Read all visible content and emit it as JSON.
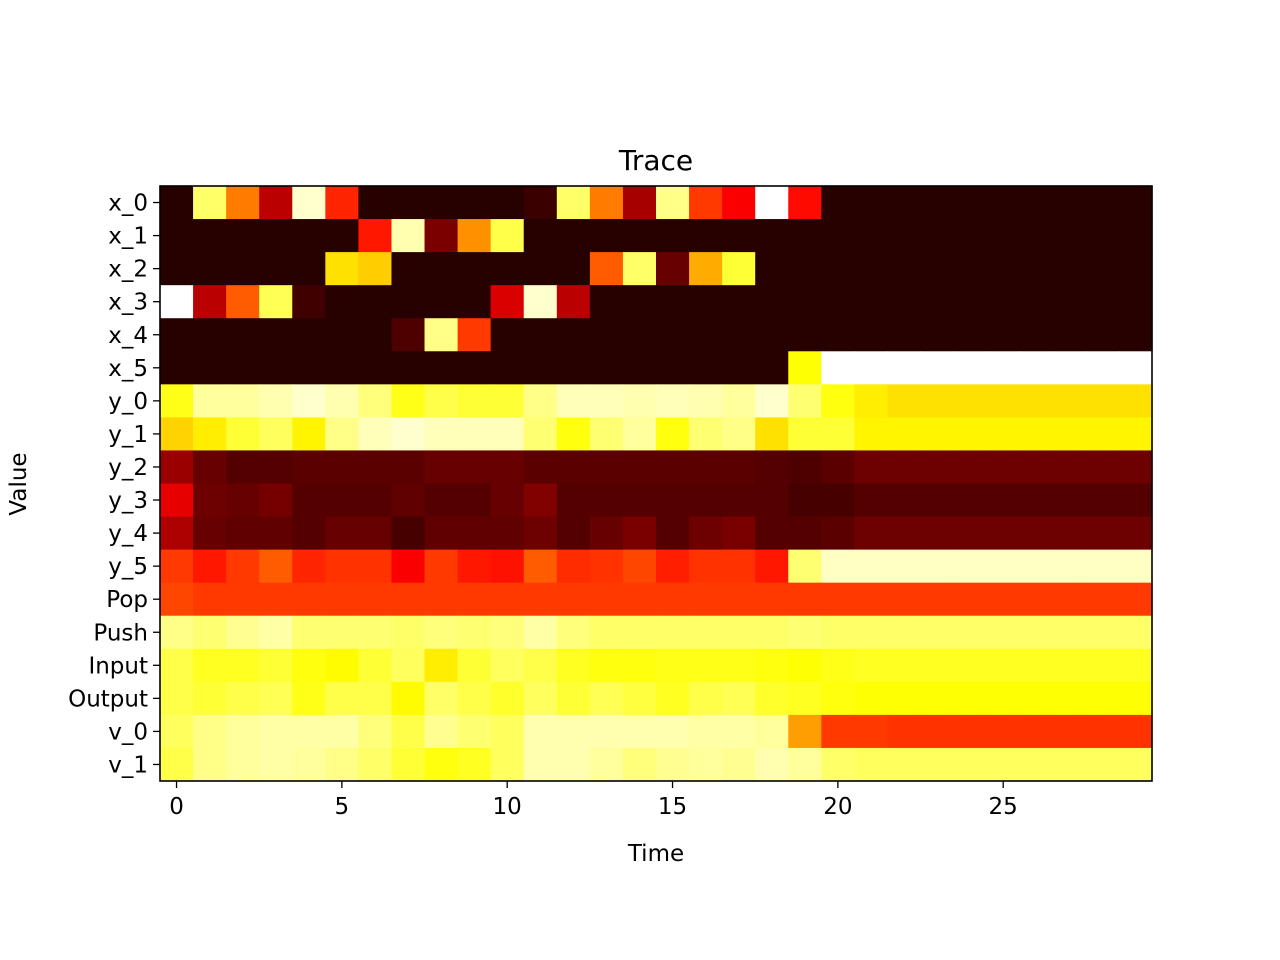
{
  "chart_data": {
    "type": "heatmap",
    "title": "Trace",
    "xlabel": "Time",
    "ylabel": "Value",
    "colormap": "hot",
    "vrange": [
      0,
      1
    ],
    "x_range": [
      -0.5,
      29.5
    ],
    "x_ticks": [
      0,
      5,
      10,
      15,
      20,
      25
    ],
    "x_tick_labels": [
      "0",
      "5",
      "10",
      "15",
      "20",
      "25"
    ],
    "rows": [
      "x_0",
      "x_1",
      "x_2",
      "x_3",
      "x_4",
      "x_5",
      "y_0",
      "y_1",
      "y_2",
      "y_3",
      "y_4",
      "y_5",
      "Pop",
      "Push",
      "Input",
      "Output",
      "v_0",
      "v_1"
    ],
    "columns": [
      0,
      1,
      2,
      3,
      4,
      5,
      6,
      7,
      8,
      9,
      10,
      11,
      12,
      13,
      14,
      15,
      16,
      17,
      18,
      19,
      20,
      21,
      22,
      23,
      24,
      25,
      26,
      27,
      28,
      29
    ],
    "values": [
      [
        0.02,
        0.85,
        0.55,
        0.25,
        0.95,
        0.42,
        0.02,
        0.02,
        0.02,
        0.02,
        0.02,
        0.05,
        0.85,
        0.55,
        0.22,
        0.88,
        0.45,
        0.35,
        1.0,
        0.38,
        0.02,
        0.02,
        0.02,
        0.02,
        0.02,
        0.02,
        0.02,
        0.02,
        0.02,
        0.02
      ],
      [
        0.02,
        0.02,
        0.02,
        0.02,
        0.02,
        0.02,
        0.4,
        0.92,
        0.15,
        0.58,
        0.82,
        0.02,
        0.02,
        0.02,
        0.02,
        0.02,
        0.02,
        0.02,
        0.02,
        0.02,
        0.02,
        0.02,
        0.02,
        0.02,
        0.02,
        0.02,
        0.02,
        0.02,
        0.02,
        0.02
      ],
      [
        0.02,
        0.02,
        0.02,
        0.02,
        0.02,
        0.7,
        0.67,
        0.02,
        0.02,
        0.02,
        0.02,
        0.02,
        0.02,
        0.5,
        0.85,
        0.12,
        0.62,
        0.8,
        0.02,
        0.02,
        0.02,
        0.02,
        0.02,
        0.02,
        0.02,
        0.02,
        0.02,
        0.02,
        0.02,
        0.02
      ],
      [
        1.0,
        0.25,
        0.5,
        0.83,
        0.06,
        0.02,
        0.02,
        0.02,
        0.02,
        0.02,
        0.3,
        0.95,
        0.25,
        0.02,
        0.02,
        0.02,
        0.02,
        0.02,
        0.02,
        0.02,
        0.02,
        0.02,
        0.02,
        0.02,
        0.02,
        0.02,
        0.02,
        0.02,
        0.02,
        0.02
      ],
      [
        0.02,
        0.02,
        0.02,
        0.02,
        0.02,
        0.02,
        0.02,
        0.08,
        0.88,
        0.45,
        0.02,
        0.02,
        0.02,
        0.02,
        0.02,
        0.02,
        0.02,
        0.02,
        0.02,
        0.02,
        0.02,
        0.02,
        0.02,
        0.02,
        0.02,
        0.02,
        0.02,
        0.02,
        0.02,
        0.02
      ],
      [
        0.02,
        0.02,
        0.02,
        0.02,
        0.02,
        0.02,
        0.02,
        0.02,
        0.02,
        0.02,
        0.02,
        0.02,
        0.02,
        0.02,
        0.02,
        0.02,
        0.02,
        0.02,
        0.02,
        0.75,
        1.0,
        1.0,
        1.0,
        1.0,
        1.0,
        1.0,
        1.0,
        1.0,
        1.0,
        1.0
      ],
      [
        0.77,
        0.9,
        0.9,
        0.92,
        0.95,
        0.92,
        0.87,
        0.77,
        0.82,
        0.8,
        0.8,
        0.88,
        0.93,
        0.93,
        0.92,
        0.93,
        0.92,
        0.9,
        0.95,
        0.86,
        0.76,
        0.72,
        0.7,
        0.7,
        0.7,
        0.7,
        0.7,
        0.7,
        0.7,
        0.7
      ],
      [
        0.68,
        0.72,
        0.8,
        0.84,
        0.73,
        0.88,
        0.93,
        0.95,
        0.93,
        0.93,
        0.93,
        0.86,
        0.76,
        0.86,
        0.9,
        0.76,
        0.86,
        0.88,
        0.7,
        0.8,
        0.8,
        0.73,
        0.73,
        0.73,
        0.73,
        0.73,
        0.73,
        0.73,
        0.73,
        0.73
      ],
      [
        0.2,
        0.12,
        0.09,
        0.09,
        0.1,
        0.1,
        0.1,
        0.1,
        0.12,
        0.12,
        0.12,
        0.1,
        0.1,
        0.1,
        0.1,
        0.1,
        0.1,
        0.1,
        0.09,
        0.08,
        0.1,
        0.13,
        0.13,
        0.13,
        0.13,
        0.13,
        0.13,
        0.13,
        0.13,
        0.13
      ],
      [
        0.32,
        0.13,
        0.12,
        0.14,
        0.09,
        0.09,
        0.09,
        0.11,
        0.09,
        0.09,
        0.12,
        0.16,
        0.09,
        0.09,
        0.09,
        0.09,
        0.09,
        0.09,
        0.09,
        0.07,
        0.07,
        0.09,
        0.09,
        0.09,
        0.09,
        0.09,
        0.09,
        0.09,
        0.09,
        0.09
      ],
      [
        0.23,
        0.12,
        0.11,
        0.11,
        0.09,
        0.12,
        0.12,
        0.07,
        0.11,
        0.11,
        0.11,
        0.13,
        0.09,
        0.12,
        0.15,
        0.09,
        0.13,
        0.15,
        0.09,
        0.09,
        0.1,
        0.13,
        0.13,
        0.13,
        0.13,
        0.13,
        0.13,
        0.13,
        0.13,
        0.13
      ],
      [
        0.45,
        0.4,
        0.45,
        0.5,
        0.42,
        0.44,
        0.44,
        0.35,
        0.45,
        0.4,
        0.39,
        0.5,
        0.43,
        0.44,
        0.47,
        0.41,
        0.44,
        0.44,
        0.4,
        0.86,
        0.94,
        0.94,
        0.94,
        0.94,
        0.94,
        0.94,
        0.94,
        0.94,
        0.94,
        0.94
      ],
      [
        0.47,
        0.45,
        0.45,
        0.45,
        0.45,
        0.45,
        0.45,
        0.45,
        0.45,
        0.45,
        0.45,
        0.45,
        0.45,
        0.45,
        0.45,
        0.45,
        0.45,
        0.45,
        0.45,
        0.45,
        0.45,
        0.45,
        0.45,
        0.45,
        0.45,
        0.45,
        0.45,
        0.45,
        0.45,
        0.45
      ],
      [
        0.88,
        0.86,
        0.89,
        0.91,
        0.86,
        0.86,
        0.86,
        0.85,
        0.87,
        0.86,
        0.87,
        0.91,
        0.87,
        0.85,
        0.85,
        0.85,
        0.85,
        0.85,
        0.85,
        0.86,
        0.85,
        0.85,
        0.85,
        0.85,
        0.85,
        0.85,
        0.85,
        0.85,
        0.85,
        0.85
      ],
      [
        0.82,
        0.78,
        0.78,
        0.8,
        0.76,
        0.74,
        0.8,
        0.84,
        0.72,
        0.8,
        0.84,
        0.82,
        0.78,
        0.76,
        0.76,
        0.77,
        0.77,
        0.77,
        0.76,
        0.75,
        0.77,
        0.78,
        0.78,
        0.78,
        0.78,
        0.78,
        0.78,
        0.78,
        0.78,
        0.78
      ],
      [
        0.82,
        0.8,
        0.82,
        0.83,
        0.77,
        0.82,
        0.82,
        0.74,
        0.85,
        0.82,
        0.79,
        0.84,
        0.8,
        0.83,
        0.81,
        0.78,
        0.82,
        0.83,
        0.79,
        0.78,
        0.76,
        0.75,
        0.75,
        0.75,
        0.75,
        0.75,
        0.75,
        0.75,
        0.75,
        0.75
      ],
      [
        0.84,
        0.88,
        0.9,
        0.91,
        0.91,
        0.91,
        0.87,
        0.82,
        0.89,
        0.86,
        0.84,
        0.92,
        0.92,
        0.92,
        0.92,
        0.92,
        0.91,
        0.91,
        0.9,
        0.6,
        0.45,
        0.45,
        0.44,
        0.44,
        0.44,
        0.44,
        0.44,
        0.44,
        0.44,
        0.44
      ],
      [
        0.82,
        0.88,
        0.9,
        0.91,
        0.9,
        0.88,
        0.85,
        0.8,
        0.76,
        0.78,
        0.84,
        0.92,
        0.92,
        0.9,
        0.87,
        0.89,
        0.9,
        0.89,
        0.92,
        0.9,
        0.85,
        0.84,
        0.84,
        0.84,
        0.84,
        0.84,
        0.84,
        0.84,
        0.84,
        0.84
      ]
    ]
  }
}
